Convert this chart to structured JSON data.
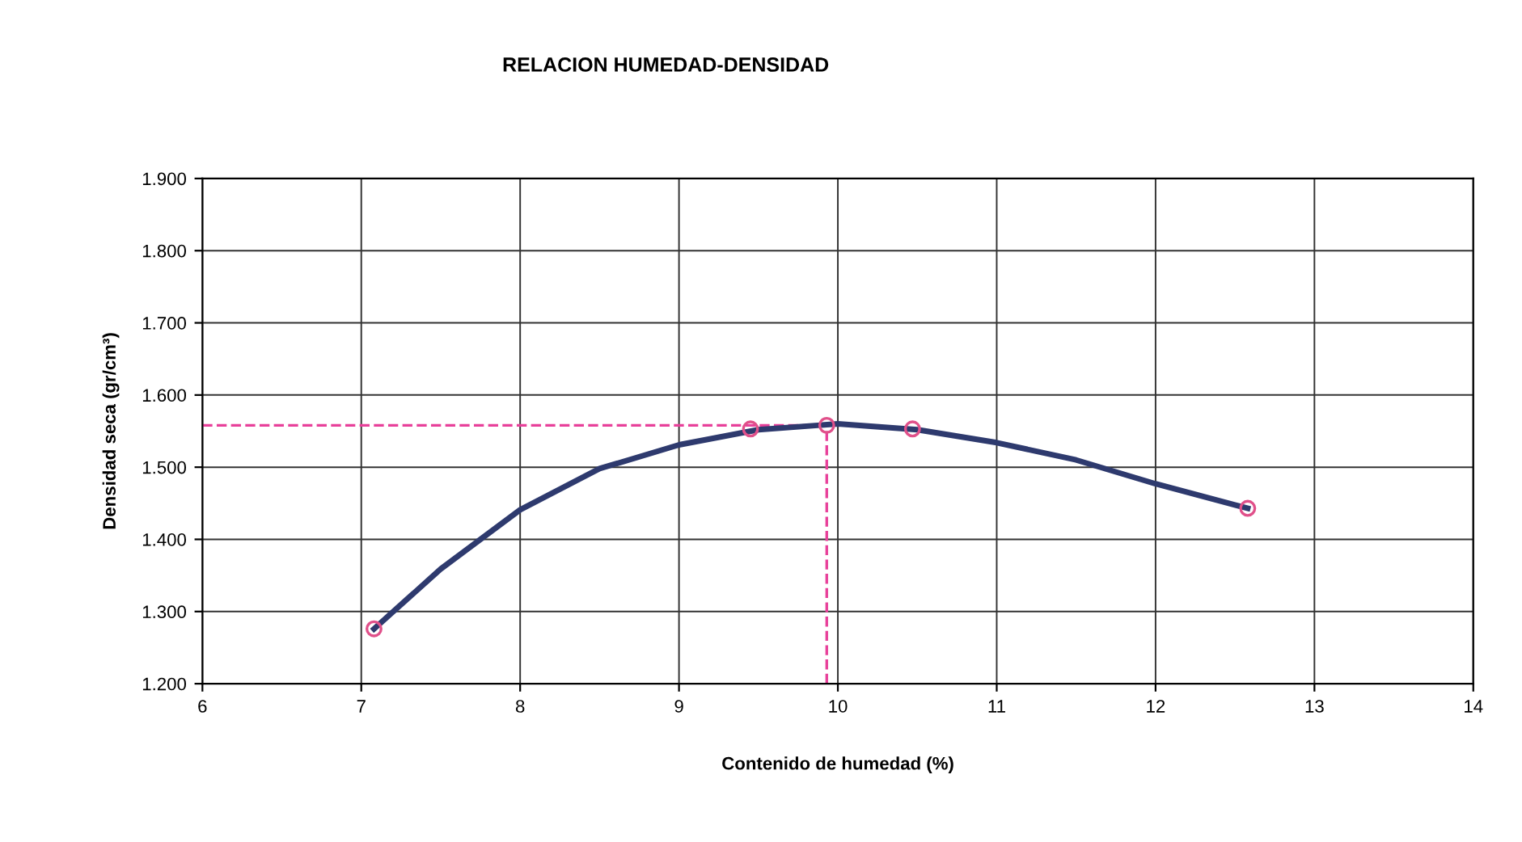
{
  "chart_data": {
    "type": "scatter",
    "title": "RELACION HUMEDAD-DENSIDAD",
    "xlabel": "Contenido de humedad (%)",
    "ylabel": "Densidad seca (gr/cm³)",
    "xlim": [
      6,
      14
    ],
    "xticks": [
      6,
      7,
      8,
      9,
      10,
      11,
      12,
      13,
      14
    ],
    "ylim": [
      1.2,
      1.9
    ],
    "yticks": [
      {
        "value": 1.2,
        "label": "1.200"
      },
      {
        "value": 1.3,
        "label": "1.300"
      },
      {
        "value": 1.4,
        "label": "1.400"
      },
      {
        "value": 1.5,
        "label": "1.500"
      },
      {
        "value": 1.6,
        "label": "1.600"
      },
      {
        "value": 1.7,
        "label": "1.700"
      },
      {
        "value": 1.8,
        "label": "1.800"
      },
      {
        "value": 1.9,
        "label": "1.900"
      }
    ],
    "grid": true,
    "legend": false,
    "series": [
      {
        "type": "line",
        "color": "#2e3a6e",
        "marker": "none",
        "line_style": "solid",
        "x": [
          7.08,
          7.5,
          8,
          8.5,
          9,
          9.5,
          10,
          10.5,
          11,
          11.5,
          12,
          12.58
        ],
        "values": [
          1.276,
          1.359,
          1.441,
          1.498,
          1.531,
          1.552,
          1.56,
          1.552,
          1.534,
          1.51,
          1.477,
          1.443
        ]
      },
      {
        "color": "#e0508a",
        "marker": "circle",
        "x": [
          7.08,
          9.45,
          9.93,
          10.47,
          12.58
        ],
        "values": [
          1.276,
          1.553,
          1.558,
          1.553,
          1.443
        ]
      }
    ],
    "ref_lines": [
      {
        "axis": "y",
        "value": 1.558,
        "color": "#e8409a",
        "line_style": "dashed"
      },
      {
        "axis": "x",
        "value": 9.93,
        "color": "#e8409a",
        "line_style": "dashed"
      }
    ]
  }
}
